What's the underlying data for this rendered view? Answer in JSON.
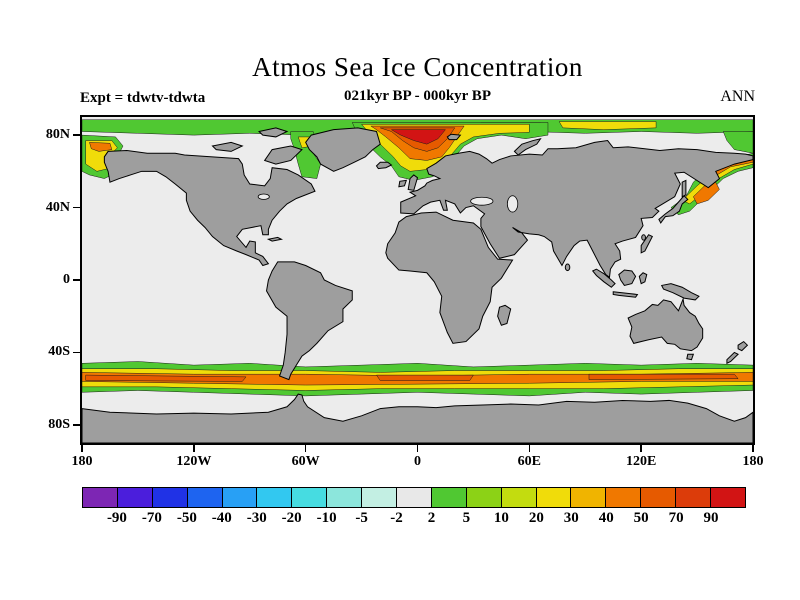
{
  "header": {
    "title": "Atmos Sea Ice Concentration",
    "experiment": "Expt = tdwtv-tdwta",
    "period": "021kyr BP - 000kyr BP",
    "season": "ANN"
  },
  "axes": {
    "lat_ticks": [
      {
        "label": "80N",
        "pct": 5.56
      },
      {
        "label": "40N",
        "pct": 27.78
      },
      {
        "label": "0",
        "pct": 50
      },
      {
        "label": "40S",
        "pct": 72.22
      },
      {
        "label": "80S",
        "pct": 94.44
      }
    ],
    "lon_ticks": [
      {
        "label": "180",
        "pct": 0
      },
      {
        "label": "120W",
        "pct": 16.667
      },
      {
        "label": "60W",
        "pct": 33.333
      },
      {
        "label": "0",
        "pct": 50
      },
      {
        "label": "60E",
        "pct": 66.667
      },
      {
        "label": "120E",
        "pct": 83.333
      },
      {
        "label": "180",
        "pct": 100
      }
    ]
  },
  "colorbar": {
    "labels": [
      "-90",
      "-70",
      "-50",
      "-40",
      "-30",
      "-20",
      "-10",
      "-5",
      "-2",
      "2",
      "5",
      "10",
      "20",
      "30",
      "40",
      "50",
      "70",
      "90"
    ],
    "colors": [
      "#7D26B4",
      "#4B1EDC",
      "#2032E6",
      "#1E64F0",
      "#28A0F5",
      "#32C8F0",
      "#46DCE1",
      "#8CE6DC",
      "#C3EFE3",
      "#E8E8E8",
      "#50C832",
      "#8CD216",
      "#C3DC0F",
      "#F0DC0A",
      "#F0B400",
      "#F07800",
      "#E65A00",
      "#DC3C0A",
      "#D21414"
    ]
  },
  "colors": {
    "ocean": "#ECECEC",
    "land": "#9E9E9E",
    "coast": "#000000",
    "ice_green": "#50C832",
    "ice_yellow": "#F0DC0A",
    "ice_orange": "#F07800",
    "ice_deep_orange": "#E65A00",
    "ice_red": "#D21414"
  },
  "chart_data": {
    "type": "heatmap",
    "title": "Atmos Sea Ice Concentration",
    "subtitle": "021kyr BP - 000kyr BP",
    "experiment": "tdwtv-tdwta",
    "season": "ANN",
    "projection": "equirectangular world map, land masked gray",
    "x": {
      "label": "longitude",
      "range": [
        -180,
        180
      ],
      "tick_labels": [
        "180",
        "120W",
        "60W",
        "0",
        "60E",
        "120E",
        "180"
      ]
    },
    "y": {
      "label": "latitude",
      "range": [
        -90,
        90
      ],
      "tick_labels": [
        "80N",
        "40N",
        "0",
        "40S",
        "80S"
      ]
    },
    "contour_levels": [
      -90,
      -70,
      -50,
      -40,
      -30,
      -20,
      -10,
      -5,
      -2,
      2,
      5,
      10,
      20,
      30,
      40,
      50,
      70,
      90
    ],
    "palette": [
      "#7D26B4",
      "#4B1EDC",
      "#2032E6",
      "#1E64F0",
      "#28A0F5",
      "#32C8F0",
      "#46DCE1",
      "#8CE6DC",
      "#C3EFE3",
      "#E8E8E8",
      "#50C832",
      "#8CD216",
      "#C3DC0F",
      "#F0DC0A",
      "#F0B400",
      "#F07800",
      "#E65A00",
      "#DC3C0A",
      "#D21414"
    ],
    "legend_position": "bottom horizontal label bar",
    "regions": [
      {
        "area": "Greenland / Norwegian / Barents Seas (65N-87N, 25W-25E)",
        "value_range": "40 to >90, red core 70 to >90"
      },
      {
        "area": "Arctic Ocean rim band (78N-88N, most longitudes)",
        "value_range": "2 to 30"
      },
      {
        "area": "Baffin Bay / Labrador Sea (55N-82N, 70W-50W)",
        "value_range": "2 to 20"
      },
      {
        "area": "Bering / Chukchi Seas near 180 (52N-72N)",
        "value_range": "5 to 50"
      },
      {
        "area": "Sea of Okhotsk / NW Pacific (40N-66N, 140E-180)",
        "value_range": "5 to 50"
      },
      {
        "area": "Southern Ocean circumpolar band (48S-63S)",
        "value_range": "2 to 70, strongest 40-70 in Pacific and Indian sectors"
      },
      {
        "area": "remaining ocean",
        "value_range": "-2 to 2 (no significant change)"
      }
    ]
  }
}
